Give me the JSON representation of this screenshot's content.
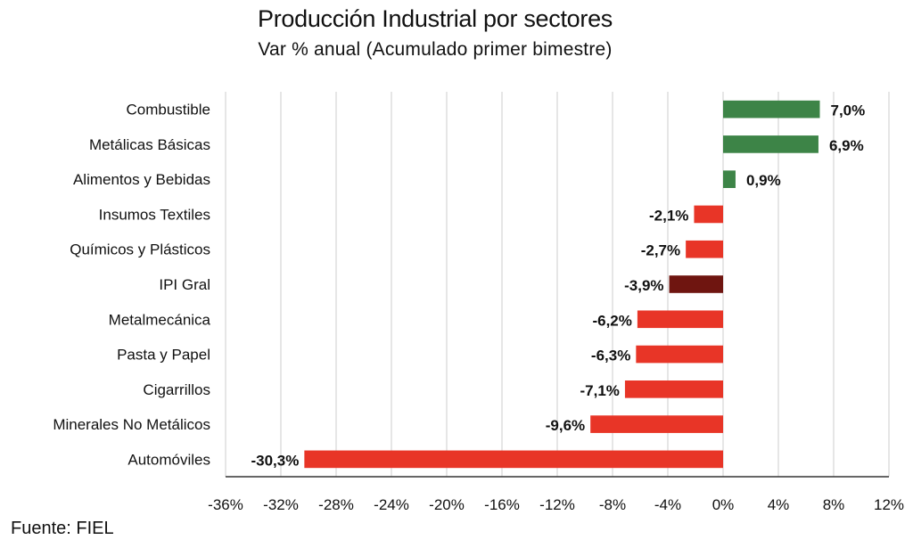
{
  "chart_data": {
    "type": "bar",
    "orientation": "horizontal",
    "title": "Producción Industrial por sectores",
    "subtitle": "Var % anual (Acumulado primer bimestre)",
    "xlabel": "",
    "ylabel": "",
    "xlim": [
      -36,
      12
    ],
    "x_ticks": [
      -36,
      -32,
      -28,
      -24,
      -20,
      -16,
      -12,
      -8,
      -4,
      0,
      4,
      8,
      12
    ],
    "x_tick_labels": [
      "-36%",
      "-32%",
      "-28%",
      "-24%",
      "-20%",
      "-16%",
      "-12%",
      "-8%",
      "-4%",
      "0%",
      "4%",
      "8%",
      "12%"
    ],
    "grid": "vertical",
    "legend": "none",
    "categories": [
      "Combustible",
      "Metálicas Básicas",
      "Alimentos y Bebidas",
      "Insumos Textiles",
      "Químicos y Plásticos",
      "IPI Gral",
      "Metalmecánica",
      "Pasta y Papel",
      "Cigarrillos",
      "Minerales No Metálicos",
      "Automóviles"
    ],
    "values": [
      7.0,
      6.9,
      0.9,
      -2.1,
      -2.7,
      -3.9,
      -6.2,
      -6.3,
      -7.1,
      -9.6,
      -30.3
    ],
    "data_labels": [
      "7,0%",
      "6,9%",
      "0,9%",
      "-2,1%",
      "-2,7%",
      "-3,9%",
      "-6,2%",
      "-6,3%",
      "-7,1%",
      "-9,6%",
      "-30,3%"
    ],
    "highlight_category": "IPI Gral",
    "colors": {
      "positive": "#3d8447",
      "negative": "#e83527",
      "highlight": "#6f1510",
      "grid": "#d9d9d9",
      "axis": "#333333"
    }
  },
  "footer": {
    "source": "Fuente: FIEL"
  }
}
